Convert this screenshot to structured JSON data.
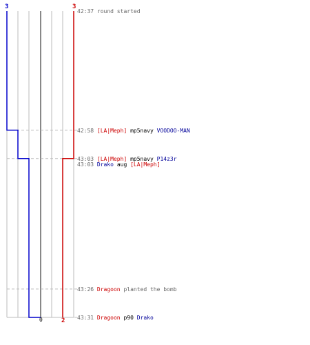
{
  "colors": {
    "ct": "#0000cc",
    "t": "#cc0000",
    "grid": "#bbbbbb",
    "axis": "#888888",
    "dashed": "#bbbbbb"
  },
  "chart_data": {
    "type": "line",
    "ct_start": "3",
    "t_start": "3",
    "ct_end": "0",
    "t_end": "2",
    "ct_path": [
      {
        "time": "42:37",
        "alive": 3
      },
      {
        "time": "42:58",
        "alive": 2
      },
      {
        "time": "43:03",
        "alive": 1
      },
      {
        "time": "43:31",
        "alive": 0
      }
    ],
    "t_path": [
      {
        "time": "42:37",
        "alive": 3
      },
      {
        "time": "43:03",
        "alive": 2
      },
      {
        "time": "43:31",
        "alive": 2
      }
    ]
  },
  "events": [
    {
      "time": "42:37",
      "text": "round started"
    },
    {
      "time": "42:58",
      "killer": "[LA|Meph]",
      "killer_team": "t",
      "weapon": "mp5navy",
      "victim": "VOODOO-MAN",
      "victim_team": "ct"
    },
    {
      "time": "43:03",
      "killer": "[LA|Meph]",
      "killer_team": "t",
      "weapon": "mp5navy",
      "victim": "P14z3r",
      "victim_team": "ct"
    },
    {
      "time": "43:03",
      "killer": "Drako",
      "killer_team": "ct",
      "weapon": "aug",
      "victim": "[LA|Meph]",
      "victim_team": "t"
    },
    {
      "time": "43:26",
      "killer": "Dragoon",
      "killer_team": "t",
      "weapon": "planted the bomb",
      "action": true
    },
    {
      "time": "43:31",
      "killer": "Dragoon",
      "killer_team": "t",
      "weapon": "p90",
      "victim": "Drako",
      "victim_team": "ct"
    }
  ]
}
